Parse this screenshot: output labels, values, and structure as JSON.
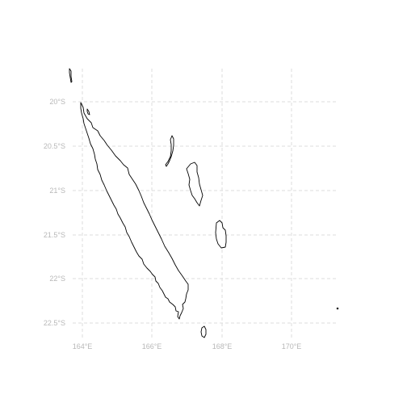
{
  "map": {
    "type": "coastline",
    "region": "New Caledonia",
    "grid_lines": true,
    "lat_labels": [
      "20°S",
      "20.5°S",
      "21°S",
      "21.5°S",
      "22°S",
      "22.5°S"
    ],
    "lon_labels": [
      "164°E",
      "166°E",
      "168°E",
      "170°E"
    ],
    "colors": {
      "coastline": "#000000",
      "grid": "#dcdcdc",
      "labels": "#b8b8b8",
      "background": "#ffffff"
    },
    "features": [
      "grande-terre",
      "belep-islet",
      "ouvea",
      "lifou",
      "mare",
      "isle-of-pines",
      "walpole-dot"
    ]
  }
}
